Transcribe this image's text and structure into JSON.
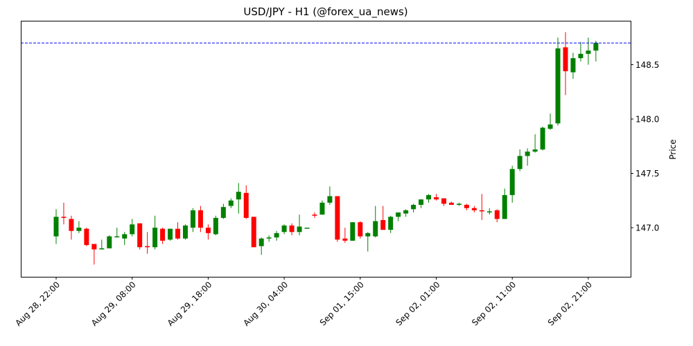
{
  "chart_data": {
    "type": "candlestick",
    "title": "USD/JPY - H1 (@forex_ua_news)",
    "xlabel": "",
    "ylabel": "Price",
    "ylim": [
      146.55,
      148.9
    ],
    "y_ticks": [
      147.0,
      147.5,
      148.0,
      148.5
    ],
    "y_tick_labels": [
      "147.0",
      "147.5",
      "148.0",
      "148.5"
    ],
    "x_tick_labels": [
      "Aug 28, 22:00",
      "Aug 29, 08:00",
      "Aug 29, 18:00",
      "Aug 30, 04:00",
      "Sep 01, 15:00",
      "Sep 02, 01:00",
      "Sep 02, 11:00",
      "Sep 02, 21:00"
    ],
    "x_tick_indices": [
      0,
      10,
      20,
      30,
      40,
      50,
      60,
      70
    ],
    "reference_line": {
      "value": 148.7,
      "style": "dashed",
      "color": "#0000ff"
    },
    "grid": false,
    "legend": null,
    "colors": {
      "up": "#008000",
      "down": "#ff0000"
    },
    "candles": [
      {
        "o": 146.92,
        "h": 147.17,
        "l": 146.85,
        "c": 147.1
      },
      {
        "o": 147.1,
        "h": 147.23,
        "l": 147.03,
        "c": 147.09
      },
      {
        "o": 147.08,
        "h": 147.11,
        "l": 146.89,
        "c": 146.97
      },
      {
        "o": 146.97,
        "h": 147.06,
        "l": 146.95,
        "c": 147.0
      },
      {
        "o": 146.99,
        "h": 147.0,
        "l": 146.83,
        "c": 146.84
      },
      {
        "o": 146.85,
        "h": 146.85,
        "l": 146.66,
        "c": 146.8
      },
      {
        "o": 146.8,
        "h": 146.89,
        "l": 146.8,
        "c": 146.81
      },
      {
        "o": 146.81,
        "h": 146.93,
        "l": 146.81,
        "c": 146.92
      },
      {
        "o": 146.92,
        "h": 147.0,
        "l": 146.91,
        "c": 146.92
      },
      {
        "o": 146.9,
        "h": 146.96,
        "l": 146.84,
        "c": 146.94
      },
      {
        "o": 146.94,
        "h": 147.08,
        "l": 146.92,
        "c": 147.03
      },
      {
        "o": 147.04,
        "h": 147.04,
        "l": 146.8,
        "c": 146.82
      },
      {
        "o": 146.83,
        "h": 146.96,
        "l": 146.76,
        "c": 146.82
      },
      {
        "o": 146.82,
        "h": 147.11,
        "l": 146.8,
        "c": 147.0
      },
      {
        "o": 146.99,
        "h": 147.0,
        "l": 146.85,
        "c": 146.88
      },
      {
        "o": 146.89,
        "h": 146.99,
        "l": 146.88,
        "c": 146.99
      },
      {
        "o": 146.99,
        "h": 147.05,
        "l": 146.89,
        "c": 146.9
      },
      {
        "o": 146.9,
        "h": 147.03,
        "l": 146.89,
        "c": 147.02
      },
      {
        "o": 147.0,
        "h": 147.18,
        "l": 146.96,
        "c": 147.16
      },
      {
        "o": 147.16,
        "h": 147.2,
        "l": 146.96,
        "c": 147.0
      },
      {
        "o": 147.0,
        "h": 147.03,
        "l": 146.89,
        "c": 146.95
      },
      {
        "o": 146.94,
        "h": 147.11,
        "l": 146.93,
        "c": 147.09
      },
      {
        "o": 147.09,
        "h": 147.22,
        "l": 147.08,
        "c": 147.19
      },
      {
        "o": 147.2,
        "h": 147.27,
        "l": 147.18,
        "c": 147.25
      },
      {
        "o": 147.26,
        "h": 147.41,
        "l": 147.13,
        "c": 147.33
      },
      {
        "o": 147.32,
        "h": 147.39,
        "l": 147.08,
        "c": 147.09
      },
      {
        "o": 147.1,
        "h": 147.1,
        "l": 146.82,
        "c": 146.82
      },
      {
        "o": 146.83,
        "h": 146.91,
        "l": 146.75,
        "c": 146.9
      },
      {
        "o": 146.9,
        "h": 146.93,
        "l": 146.87,
        "c": 146.91
      },
      {
        "o": 146.91,
        "h": 146.97,
        "l": 146.88,
        "c": 146.95
      },
      {
        "o": 146.96,
        "h": 147.03,
        "l": 146.94,
        "c": 147.02
      },
      {
        "o": 147.02,
        "h": 147.04,
        "l": 146.93,
        "c": 146.96
      },
      {
        "o": 146.96,
        "h": 147.12,
        "l": 146.93,
        "c": 147.01
      },
      {
        "o": 147.0,
        "h": 147.0,
        "l": 147.0,
        "c": 147.0
      },
      {
        "o": 147.12,
        "h": 147.14,
        "l": 147.09,
        "c": 147.11
      },
      {
        "o": 147.12,
        "h": 147.25,
        "l": 147.12,
        "c": 147.23
      },
      {
        "o": 147.23,
        "h": 147.38,
        "l": 147.21,
        "c": 147.29
      },
      {
        "o": 147.29,
        "h": 147.29,
        "l": 146.87,
        "c": 146.89
      },
      {
        "o": 146.9,
        "h": 147.0,
        "l": 146.86,
        "c": 146.88
      },
      {
        "o": 146.88,
        "h": 147.05,
        "l": 146.88,
        "c": 147.05
      },
      {
        "o": 147.05,
        "h": 147.06,
        "l": 146.9,
        "c": 146.92
      },
      {
        "o": 146.92,
        "h": 146.96,
        "l": 146.78,
        "c": 146.95
      },
      {
        "o": 146.92,
        "h": 147.2,
        "l": 146.91,
        "c": 147.06
      },
      {
        "o": 147.07,
        "h": 147.2,
        "l": 146.99,
        "c": 146.98
      },
      {
        "o": 146.98,
        "h": 147.11,
        "l": 146.95,
        "c": 147.1
      },
      {
        "o": 147.1,
        "h": 147.14,
        "l": 147.06,
        "c": 147.14
      },
      {
        "o": 147.13,
        "h": 147.17,
        "l": 147.1,
        "c": 147.16
      },
      {
        "o": 147.17,
        "h": 147.22,
        "l": 147.14,
        "c": 147.21
      },
      {
        "o": 147.21,
        "h": 147.26,
        "l": 147.18,
        "c": 147.26
      },
      {
        "o": 147.26,
        "h": 147.31,
        "l": 147.23,
        "c": 147.3
      },
      {
        "o": 147.28,
        "h": 147.31,
        "l": 147.25,
        "c": 147.26
      },
      {
        "o": 147.27,
        "h": 147.27,
        "l": 147.2,
        "c": 147.22
      },
      {
        "o": 147.23,
        "h": 147.24,
        "l": 147.21,
        "c": 147.21
      },
      {
        "o": 147.21,
        "h": 147.23,
        "l": 147.2,
        "c": 147.22
      },
      {
        "o": 147.21,
        "h": 147.22,
        "l": 147.16,
        "c": 147.18
      },
      {
        "o": 147.18,
        "h": 147.2,
        "l": 147.14,
        "c": 147.16
      },
      {
        "o": 147.16,
        "h": 147.31,
        "l": 147.07,
        "c": 147.15
      },
      {
        "o": 147.14,
        "h": 147.18,
        "l": 147.12,
        "c": 147.15
      },
      {
        "o": 147.16,
        "h": 147.17,
        "l": 147.05,
        "c": 147.08
      },
      {
        "o": 147.08,
        "h": 147.36,
        "l": 147.08,
        "c": 147.3
      },
      {
        "o": 147.3,
        "h": 147.57,
        "l": 147.23,
        "c": 147.54
      },
      {
        "o": 147.54,
        "h": 147.72,
        "l": 147.52,
        "c": 147.66
      },
      {
        "o": 147.66,
        "h": 147.73,
        "l": 147.57,
        "c": 147.7
      },
      {
        "o": 147.7,
        "h": 147.86,
        "l": 147.69,
        "c": 147.72
      },
      {
        "o": 147.72,
        "h": 147.93,
        "l": 147.71,
        "c": 147.92
      },
      {
        "o": 147.91,
        "h": 148.05,
        "l": 147.9,
        "c": 147.95
      },
      {
        "o": 147.96,
        "h": 148.75,
        "l": 147.94,
        "c": 148.65
      },
      {
        "o": 148.66,
        "h": 148.8,
        "l": 148.22,
        "c": 148.44
      },
      {
        "o": 148.43,
        "h": 148.61,
        "l": 148.37,
        "c": 148.56
      },
      {
        "o": 148.56,
        "h": 148.71,
        "l": 148.53,
        "c": 148.6
      },
      {
        "o": 148.6,
        "h": 148.75,
        "l": 148.5,
        "c": 148.63
      },
      {
        "o": 148.63,
        "h": 148.72,
        "l": 148.53,
        "c": 148.7
      }
    ]
  }
}
